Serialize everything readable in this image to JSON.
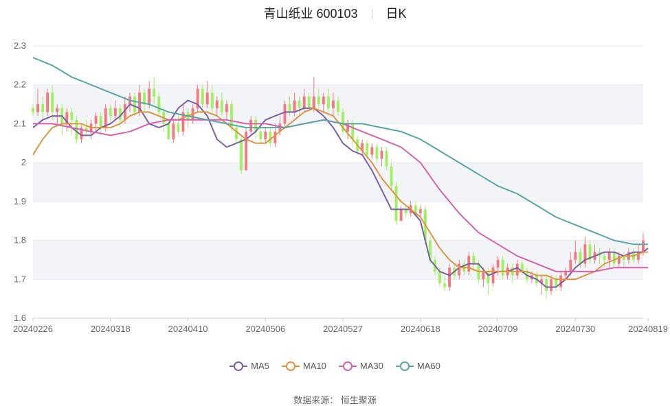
{
  "title": {
    "name": "青山纸业 600103",
    "period": "日K"
  },
  "source": "数据来源： 恒生聚源",
  "colors": {
    "up": "#f4777f",
    "down": "#9ef25e",
    "MA5": "#7b5ea8",
    "MA10": "#e0933e",
    "MA30": "#d95fae",
    "MA60": "#56a6a6",
    "grid": "#e6e8ee",
    "band": "#f3f4f8"
  },
  "chart_data": {
    "type": "candlestick",
    "ylim": [
      1.6,
      2.3
    ],
    "y_ticks": [
      "1.6",
      "1.7",
      "1.8",
      "1.9",
      "2",
      "2.1",
      "2.2",
      "2.3"
    ],
    "x_ticks": [
      {
        "i": 0,
        "label": "20240226"
      },
      {
        "i": 16,
        "label": "20240318"
      },
      {
        "i": 32,
        "label": "20240410"
      },
      {
        "i": 48,
        "label": "20240506"
      },
      {
        "i": 64,
        "label": "20240527"
      },
      {
        "i": 80,
        "label": "20240618"
      },
      {
        "i": 96,
        "label": "20240709"
      },
      {
        "i": 112,
        "label": "20240730"
      },
      {
        "i": 127,
        "label": "20240819"
      }
    ],
    "candles": [
      [
        2.14,
        2.13,
        2.15,
        2.12
      ],
      [
        2.13,
        2.15,
        2.19,
        2.12
      ],
      [
        2.15,
        2.13,
        2.17,
        2.11
      ],
      [
        2.13,
        2.18,
        2.19,
        2.12
      ],
      [
        2.18,
        2.13,
        2.2,
        2.11
      ],
      [
        2.13,
        2.14,
        2.15,
        2.1
      ],
      [
        2.14,
        2.1,
        2.15,
        2.07
      ],
      [
        2.1,
        2.13,
        2.14,
        2.08
      ],
      [
        2.13,
        2.11,
        2.14,
        2.07
      ],
      [
        2.11,
        2.06,
        2.12,
        2.05
      ],
      [
        2.06,
        2.09,
        2.1,
        2.05
      ],
      [
        2.09,
        2.08,
        2.11,
        2.07
      ],
      [
        2.08,
        2.1,
        2.11,
        2.06
      ],
      [
        2.1,
        2.12,
        2.13,
        2.08
      ],
      [
        2.12,
        2.09,
        2.13,
        2.07
      ],
      [
        2.09,
        2.14,
        2.15,
        2.08
      ],
      [
        2.14,
        2.12,
        2.15,
        2.1
      ],
      [
        2.12,
        2.14,
        2.16,
        2.11
      ],
      [
        2.14,
        2.11,
        2.15,
        2.09
      ],
      [
        2.11,
        2.15,
        2.17,
        2.1
      ],
      [
        2.15,
        2.17,
        2.18,
        2.13
      ],
      [
        2.17,
        2.13,
        2.18,
        2.12
      ],
      [
        2.13,
        2.18,
        2.2,
        2.12
      ],
      [
        2.18,
        2.15,
        2.19,
        2.13
      ],
      [
        2.15,
        2.19,
        2.21,
        2.14
      ],
      [
        2.19,
        2.17,
        2.22,
        2.15
      ],
      [
        2.17,
        2.13,
        2.18,
        2.12
      ],
      [
        2.13,
        2.1,
        2.14,
        2.08
      ],
      [
        2.1,
        2.06,
        2.11,
        2.06
      ],
      [
        2.06,
        2.1,
        2.11,
        2.05
      ],
      [
        2.1,
        2.08,
        2.12,
        2.07
      ],
      [
        2.08,
        2.13,
        2.15,
        2.07
      ],
      [
        2.13,
        2.11,
        2.14,
        2.09
      ],
      [
        2.11,
        2.14,
        2.15,
        2.1
      ],
      [
        2.14,
        2.19,
        2.2,
        2.13
      ],
      [
        2.19,
        2.15,
        2.2,
        2.14
      ],
      [
        2.15,
        2.18,
        2.21,
        2.14
      ],
      [
        2.18,
        2.14,
        2.2,
        2.13
      ],
      [
        2.14,
        2.16,
        2.17,
        2.12
      ],
      [
        2.16,
        2.13,
        2.18,
        2.12
      ],
      [
        2.13,
        2.15,
        2.16,
        2.11
      ],
      [
        2.15,
        2.09,
        2.16,
        2.08
      ],
      [
        2.09,
        2.06,
        2.1,
        2.05
      ],
      [
        2.06,
        1.98,
        2.07,
        1.97
      ],
      [
        1.98,
        2.08,
        2.09,
        1.98
      ],
      [
        2.08,
        2.11,
        2.12,
        2.07
      ],
      [
        2.11,
        2.08,
        2.12,
        2.06
      ],
      [
        2.08,
        2.06,
        2.09,
        2.05
      ],
      [
        2.06,
        2.08,
        2.09,
        2.05
      ],
      [
        2.08,
        2.05,
        2.09,
        2.04
      ],
      [
        2.05,
        2.08,
        2.1,
        2.04
      ],
      [
        2.08,
        2.1,
        2.12,
        2.07
      ],
      [
        2.1,
        2.15,
        2.16,
        2.09
      ],
      [
        2.15,
        2.13,
        2.17,
        2.12
      ],
      [
        2.13,
        2.16,
        2.18,
        2.12
      ],
      [
        2.16,
        2.14,
        2.17,
        2.12
      ],
      [
        2.14,
        2.17,
        2.19,
        2.13
      ],
      [
        2.17,
        2.14,
        2.18,
        2.13
      ],
      [
        2.14,
        2.17,
        2.22,
        2.13
      ],
      [
        2.17,
        2.15,
        2.19,
        2.14
      ],
      [
        2.15,
        2.17,
        2.18,
        2.13
      ],
      [
        2.17,
        2.14,
        2.19,
        2.13
      ],
      [
        2.14,
        2.16,
        2.18,
        2.12
      ],
      [
        2.16,
        2.13,
        2.17,
        2.12
      ],
      [
        2.13,
        2.08,
        2.14,
        2.07
      ],
      [
        2.08,
        2.1,
        2.11,
        2.06
      ],
      [
        2.1,
        2.06,
        2.11,
        2.04
      ],
      [
        2.06,
        2.03,
        2.07,
        2.02
      ],
      [
        2.03,
        2.05,
        2.06,
        2.02
      ],
      [
        2.05,
        2.02,
        2.06,
        2.01
      ],
      [
        2.02,
        2.04,
        2.05,
        2.01
      ],
      [
        2.04,
        2.01,
        2.05,
        2.0
      ],
      [
        2.01,
        2.03,
        2.04,
        1.99
      ],
      [
        2.03,
        1.99,
        2.04,
        1.98
      ],
      [
        1.99,
        1.94,
        2.0,
        1.93
      ],
      [
        1.94,
        1.85,
        1.95,
        1.84
      ],
      [
        1.85,
        1.88,
        1.89,
        1.85
      ],
      [
        1.88,
        1.87,
        1.89,
        1.86
      ],
      [
        1.87,
        1.89,
        1.9,
        1.86
      ],
      [
        1.89,
        1.87,
        1.9,
        1.86
      ],
      [
        1.87,
        1.88,
        1.89,
        1.86
      ],
      [
        1.88,
        1.8,
        1.89,
        1.79
      ],
      [
        1.8,
        1.75,
        1.81,
        1.74
      ],
      [
        1.75,
        1.72,
        1.76,
        1.71
      ],
      [
        1.72,
        1.69,
        1.73,
        1.68
      ],
      [
        1.69,
        1.68,
        1.71,
        1.67
      ],
      [
        1.68,
        1.73,
        1.74,
        1.67
      ],
      [
        1.73,
        1.71,
        1.74,
        1.7
      ],
      [
        1.71,
        1.74,
        1.75,
        1.7
      ],
      [
        1.74,
        1.72,
        1.75,
        1.71
      ],
      [
        1.72,
        1.76,
        1.77,
        1.71
      ],
      [
        1.76,
        1.74,
        1.77,
        1.72
      ],
      [
        1.74,
        1.7,
        1.75,
        1.69
      ],
      [
        1.7,
        1.72,
        1.73,
        1.68
      ],
      [
        1.72,
        1.69,
        1.73,
        1.66
      ],
      [
        1.69,
        1.73,
        1.74,
        1.68
      ],
      [
        1.73,
        1.75,
        1.76,
        1.71
      ],
      [
        1.75,
        1.71,
        1.76,
        1.7
      ],
      [
        1.71,
        1.73,
        1.74,
        1.7
      ],
      [
        1.73,
        1.71,
        1.74,
        1.69
      ],
      [
        1.71,
        1.74,
        1.75,
        1.7
      ],
      [
        1.74,
        1.72,
        1.75,
        1.71
      ],
      [
        1.72,
        1.7,
        1.73,
        1.69
      ],
      [
        1.7,
        1.71,
        1.72,
        1.69
      ],
      [
        1.71,
        1.69,
        1.72,
        1.68
      ],
      [
        1.69,
        1.7,
        1.71,
        1.66
      ],
      [
        1.7,
        1.67,
        1.71,
        1.65
      ],
      [
        1.67,
        1.7,
        1.71,
        1.66
      ],
      [
        1.7,
        1.68,
        1.71,
        1.67
      ],
      [
        1.68,
        1.71,
        1.72,
        1.67
      ],
      [
        1.71,
        1.72,
        1.73,
        1.7
      ],
      [
        1.72,
        1.75,
        1.77,
        1.71
      ],
      [
        1.75,
        1.77,
        1.8,
        1.74
      ],
      [
        1.77,
        1.74,
        1.78,
        1.73
      ],
      [
        1.74,
        1.79,
        1.81,
        1.73
      ],
      [
        1.79,
        1.75,
        1.8,
        1.74
      ],
      [
        1.75,
        1.77,
        1.79,
        1.74
      ],
      [
        1.77,
        1.76,
        1.78,
        1.74
      ],
      [
        1.76,
        1.75,
        1.77,
        1.73
      ],
      [
        1.75,
        1.77,
        1.78,
        1.73
      ],
      [
        1.77,
        1.74,
        1.78,
        1.73
      ],
      [
        1.74,
        1.76,
        1.77,
        1.73
      ],
      [
        1.76,
        1.75,
        1.77,
        1.73
      ],
      [
        1.75,
        1.77,
        1.78,
        1.74
      ],
      [
        1.77,
        1.75,
        1.78,
        1.74
      ],
      [
        1.75,
        1.77,
        1.79,
        1.74
      ],
      [
        1.77,
        1.8,
        1.82,
        1.76
      ]
    ],
    "series": [
      {
        "name": "MA5",
        "key": "MA5",
        "x": [
          0,
          2,
          4,
          6,
          8,
          10,
          12,
          14,
          16,
          18,
          20,
          22,
          24,
          26,
          28,
          30,
          32,
          34,
          36,
          38,
          40,
          42,
          44,
          46,
          48,
          50,
          52,
          54,
          56,
          58,
          60,
          62,
          64,
          66,
          68,
          70,
          72,
          74,
          76,
          78,
          80,
          82,
          84,
          86,
          88,
          90,
          92,
          94,
          96,
          98,
          100,
          102,
          104,
          106,
          108,
          110,
          112,
          114,
          116,
          118,
          120,
          122,
          124,
          126,
          127
        ],
        "values": [
          2.09,
          2.11,
          2.12,
          2.12,
          2.09,
          2.07,
          2.07,
          2.09,
          2.1,
          2.12,
          2.15,
          2.14,
          2.1,
          2.09,
          2.1,
          2.14,
          2.16,
          2.15,
          2.12,
          2.06,
          2.04,
          2.05,
          2.06,
          2.08,
          2.11,
          2.12,
          2.13,
          2.13,
          2.14,
          2.14,
          2.12,
          2.09,
          2.05,
          2.03,
          2.02,
          1.98,
          1.93,
          1.88,
          1.88,
          1.88,
          1.85,
          1.75,
          1.72,
          1.71,
          1.73,
          1.74,
          1.74,
          1.71,
          1.72,
          1.72,
          1.73,
          1.71,
          1.7,
          1.68,
          1.68,
          1.7,
          1.73,
          1.75,
          1.76,
          1.77,
          1.77,
          1.76,
          1.77,
          1.77,
          1.78
        ]
      },
      {
        "name": "MA10",
        "key": "MA10",
        "x": [
          0,
          2,
          4,
          6,
          8,
          10,
          12,
          14,
          16,
          18,
          20,
          22,
          24,
          26,
          28,
          30,
          32,
          34,
          36,
          38,
          40,
          42,
          44,
          46,
          48,
          50,
          52,
          54,
          56,
          58,
          60,
          62,
          64,
          66,
          68,
          70,
          72,
          74,
          76,
          78,
          80,
          82,
          84,
          86,
          88,
          90,
          92,
          94,
          96,
          98,
          100,
          102,
          104,
          106,
          108,
          110,
          112,
          114,
          116,
          118,
          120,
          122,
          124,
          126,
          127
        ],
        "values": [
          2.02,
          2.06,
          2.09,
          2.1,
          2.1,
          2.1,
          2.09,
          2.09,
          2.09,
          2.1,
          2.12,
          2.13,
          2.13,
          2.12,
          2.11,
          2.11,
          2.12,
          2.13,
          2.13,
          2.12,
          2.1,
          2.08,
          2.06,
          2.05,
          2.05,
          2.07,
          2.09,
          2.11,
          2.13,
          2.14,
          2.13,
          2.12,
          2.09,
          2.06,
          2.03,
          2.0,
          1.96,
          1.93,
          1.9,
          1.88,
          1.86,
          1.82,
          1.78,
          1.75,
          1.73,
          1.73,
          1.72,
          1.72,
          1.72,
          1.72,
          1.72,
          1.72,
          1.71,
          1.71,
          1.7,
          1.7,
          1.7,
          1.71,
          1.72,
          1.74,
          1.75,
          1.76,
          1.76,
          1.77,
          1.77
        ]
      },
      {
        "name": "MA30",
        "key": "MA30",
        "x": [
          0,
          4,
          8,
          12,
          16,
          20,
          24,
          28,
          32,
          36,
          40,
          44,
          48,
          52,
          56,
          60,
          64,
          68,
          72,
          76,
          80,
          84,
          88,
          92,
          96,
          100,
          104,
          108,
          112,
          116,
          120,
          124,
          127
        ],
        "values": [
          2.1,
          2.1,
          2.09,
          2.08,
          2.07,
          2.08,
          2.1,
          2.11,
          2.11,
          2.11,
          2.11,
          2.1,
          2.1,
          2.09,
          2.1,
          2.11,
          2.1,
          2.08,
          2.06,
          2.04,
          2.0,
          1.93,
          1.87,
          1.82,
          1.79,
          1.76,
          1.74,
          1.72,
          1.72,
          1.72,
          1.73,
          1.73,
          1.73
        ]
      },
      {
        "name": "MA60",
        "key": "MA60",
        "x": [
          0,
          4,
          8,
          12,
          16,
          20,
          24,
          28,
          32,
          36,
          40,
          44,
          48,
          52,
          56,
          60,
          64,
          68,
          72,
          76,
          80,
          84,
          88,
          92,
          96,
          100,
          104,
          108,
          112,
          116,
          120,
          124,
          127
        ],
        "values": [
          2.27,
          2.25,
          2.22,
          2.2,
          2.18,
          2.16,
          2.15,
          2.13,
          2.12,
          2.11,
          2.1,
          2.09,
          2.09,
          2.09,
          2.1,
          2.11,
          2.1,
          2.1,
          2.09,
          2.08,
          2.06,
          2.03,
          2.0,
          1.97,
          1.94,
          1.92,
          1.89,
          1.86,
          1.84,
          1.82,
          1.8,
          1.79,
          1.79
        ]
      }
    ]
  }
}
